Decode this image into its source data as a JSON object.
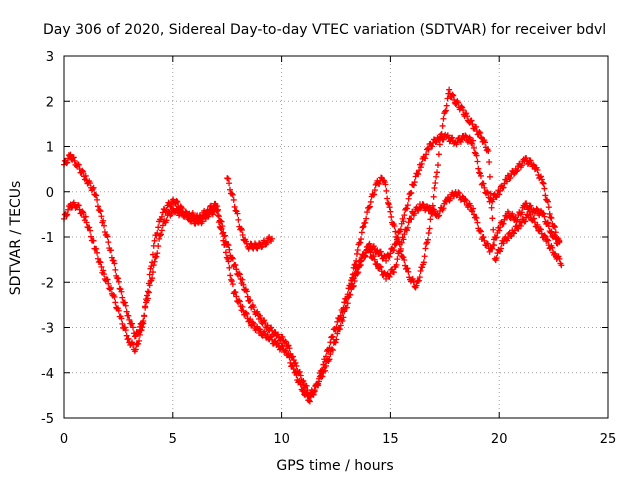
{
  "chart_data": {
    "type": "scatter",
    "title": "Day 306 of 2020, Sidereal Day-to-day VTEC variation (SDTVAR) for receiver bdvl",
    "xlabel": "GPS time / hours",
    "ylabel": "SDTVAR / TECUs",
    "xlim": [
      0,
      25
    ],
    "ylim": [
      -5,
      3
    ],
    "xticks": [
      "0",
      "5",
      "10",
      "15",
      "20",
      "25"
    ],
    "yticks": [
      "-5",
      "-4",
      "-3",
      "-2",
      "-1",
      "0",
      "1",
      "2",
      "3"
    ],
    "grid": true,
    "marker": "+",
    "color": "#ff0000",
    "series": [
      {
        "x": [
          0.0,
          0.3,
          0.6,
          1.0,
          1.4,
          1.8,
          2.2,
          2.6,
          3.0,
          3.3,
          3.6,
          3.9,
          4.2,
          4.5,
          4.8,
          5.1,
          5.4,
          5.8,
          6.2,
          6.6,
          7.0,
          7.4,
          7.8,
          8.2,
          8.6,
          9.0,
          9.4,
          9.8,
          10.2,
          10.6,
          11.0,
          11.3,
          11.6,
          12.0,
          12.4,
          12.8,
          13.2,
          13.6,
          14.0,
          14.4,
          14.8,
          15.2,
          15.6,
          16.0,
          16.4,
          16.8,
          17.2,
          17.6,
          18.0,
          18.4,
          18.8,
          19.2,
          19.6,
          20.0,
          20.4,
          20.8,
          21.2,
          21.6,
          22.0,
          22.4,
          22.8
        ],
        "y": [
          0.6,
          0.8,
          0.6,
          0.3,
          0.0,
          -0.7,
          -1.4,
          -2.2,
          -2.8,
          -3.2,
          -2.9,
          -2.2,
          -1.5,
          -0.8,
          -0.5,
          -0.4,
          -0.5,
          -0.5,
          -0.6,
          -0.4,
          -0.3,
          -1.0,
          -1.6,
          -2.0,
          -2.5,
          -2.8,
          -3.0,
          -3.2,
          -3.3,
          -3.8,
          -4.2,
          -4.5,
          -4.3,
          -3.9,
          -3.4,
          -2.8,
          -2.2,
          -1.6,
          -1.2,
          -1.3,
          -1.5,
          -1.2,
          -0.6,
          0.1,
          0.6,
          1.0,
          1.2,
          1.2,
          1.1,
          1.2,
          1.1,
          0.2,
          -0.2,
          0.0,
          0.3,
          0.5,
          0.7,
          0.6,
          0.2,
          -0.6,
          -1.2
        ]
      },
      {
        "x": [
          0.0,
          0.3,
          0.6,
          1.0,
          1.4,
          1.8,
          2.2,
          2.6,
          3.0,
          3.3,
          3.6,
          3.9,
          4.2,
          4.5,
          4.8,
          5.1,
          5.4,
          5.8,
          6.2,
          6.6,
          7.0,
          7.4,
          7.8,
          8.2,
          8.6,
          9.0,
          9.4,
          9.8,
          10.2,
          10.6,
          11.0,
          11.3,
          11.6,
          12.0,
          12.4,
          12.8,
          13.2,
          13.6,
          14.0,
          14.4,
          14.8,
          15.2,
          15.6,
          16.0,
          16.4,
          16.8,
          17.2,
          17.6,
          18.0,
          18.4,
          18.8,
          19.2,
          19.6,
          20.0,
          20.4,
          20.8,
          21.2,
          21.6,
          22.0,
          22.4,
          22.8
        ],
        "y": [
          -0.6,
          -0.3,
          -0.3,
          -0.6,
          -1.2,
          -1.8,
          -2.2,
          -2.8,
          -3.3,
          -3.5,
          -3.0,
          -2.0,
          -1.0,
          -0.5,
          -0.3,
          -0.2,
          -0.4,
          -0.6,
          -0.7,
          -0.5,
          -0.4,
          -1.2,
          -2.2,
          -2.6,
          -2.9,
          -3.1,
          -3.2,
          -3.4,
          -3.5,
          -4.0,
          -4.4,
          -4.6,
          -4.3,
          -3.7,
          -3.1,
          -2.6,
          -2.0,
          -1.5,
          -1.3,
          -1.6,
          -1.9,
          -1.7,
          -1.0,
          -0.5,
          -0.3,
          -0.4,
          -0.5,
          -0.2,
          0.0,
          -0.2,
          -0.4,
          -1.0,
          -1.3,
          -0.8,
          -0.5,
          -0.6,
          -0.3,
          -0.4,
          -0.5,
          -0.9,
          -1.2
        ]
      },
      {
        "x": [
          7.5,
          7.8,
          8.1,
          8.4,
          8.7,
          9.0,
          9.3,
          9.6,
          13.2,
          13.5,
          13.8,
          14.1,
          14.4,
          14.7,
          15.0,
          15.3,
          15.6,
          15.9,
          16.2,
          16.5,
          16.8,
          17.1,
          17.4,
          17.7,
          18.0,
          18.3,
          18.6,
          18.9,
          19.2,
          19.5,
          19.8,
          20.2,
          20.6,
          21.0,
          21.4,
          21.8,
          22.2,
          22.6,
          22.9
        ],
        "y": [
          0.3,
          -0.2,
          -0.8,
          -1.2,
          -1.2,
          -1.2,
          -1.1,
          -1.0,
          -2.0,
          -1.3,
          -0.7,
          -0.2,
          0.2,
          0.3,
          -0.5,
          -1.0,
          -1.5,
          -1.9,
          -2.1,
          -1.6,
          -0.8,
          0.3,
          1.5,
          2.2,
          2.0,
          1.8,
          1.6,
          1.4,
          1.2,
          0.9,
          -1.5,
          -1.1,
          -0.9,
          -0.7,
          -0.5,
          -0.8,
          -1.1,
          -1.4,
          -1.6
        ]
      }
    ]
  }
}
